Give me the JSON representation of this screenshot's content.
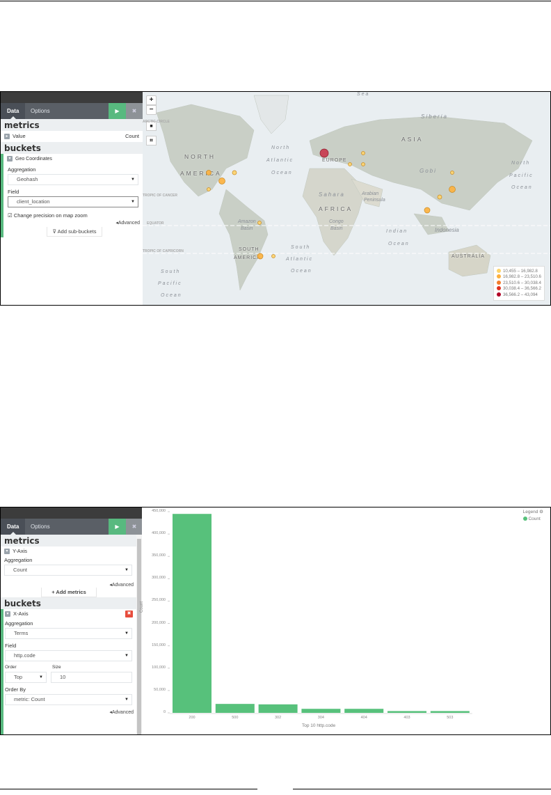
{
  "figure1": {
    "tabs": {
      "data": "Data",
      "options": "Options"
    },
    "play_icon": "play-icon",
    "close_icon": "close-icon",
    "metrics": {
      "title": "metrics",
      "item_label": "Value",
      "item_value": "Count"
    },
    "buckets": {
      "title": "buckets",
      "group_label": "Geo Coordinates",
      "aggregation_label": "Aggregation",
      "aggregation_value": "Geohash",
      "field_label": "Field",
      "field_value": "client_location",
      "checkbox_label": "Change precision on map zoom",
      "checkbox_checked": true,
      "advanced": "Advanced",
      "add_sub_buckets": "Add sub-buckets"
    },
    "map": {
      "controls": {
        "zoom_in": "+",
        "zoom_out": "−"
      },
      "labels": {
        "sea": "Sea",
        "siberia": "Siberia",
        "asia": "ASIA",
        "north": "NORTH",
        "america": "AMERICA",
        "na_ocean": [
          "North",
          "Atlantic",
          "Ocean"
        ],
        "europe": "EUROPE",
        "sahara": "Sahara",
        "africa": "AFRICA",
        "gobi": "Gobi",
        "arabian": [
          "Arabian",
          "Peninsula"
        ],
        "indonesia": "Indonesia",
        "indian": [
          "Indian",
          "Ocean"
        ],
        "australia": "AUSTRALIA",
        "np_ocean": [
          "North",
          "Pacific",
          "Ocean"
        ],
        "sa_ocean": [
          "South",
          "Atlantic",
          "Ocean"
        ],
        "sp_ocean": [
          "South",
          "Pacific",
          "Ocean"
        ],
        "south": "SOUTH",
        "s_america": "AMERICA",
        "amazon": [
          "Amazon",
          "Basin"
        ],
        "congo": [
          "Congo",
          "Basin"
        ],
        "arctic": "ARCTIC CIRCLE",
        "cancer": "TROPIC OF CANCER",
        "equator": "EQUATOR",
        "capricorn": "TROPIC OF CAPRICORN"
      },
      "legend": [
        {
          "range": "10,455 – 16,982.8",
          "color": "#fdd36a"
        },
        {
          "range": "16,982.8 – 23,510.6",
          "color": "#fdb03d"
        },
        {
          "range": "23,510.6 – 30,038.4",
          "color": "#f47d2b"
        },
        {
          "range": "30,038.4 – 36,566.2",
          "color": "#e0301e"
        },
        {
          "range": "36,566.2 – 43,094",
          "color": "#b10026"
        }
      ]
    }
  },
  "figure2": {
    "tabs": {
      "data": "Data",
      "options": "Options"
    },
    "metrics": {
      "title": "metrics",
      "y_axis": "Y-Axis",
      "aggregation_label": "Aggregation",
      "aggregation_value": "Count",
      "advanced": "Advanced",
      "add_metrics": "+ Add metrics"
    },
    "buckets": {
      "title": "buckets",
      "x_axis": "X-Axis",
      "aggregation_label": "Aggregation",
      "aggregation_value": "Terms",
      "field_label": "Field",
      "field_value": "http.code",
      "order_label": "Order",
      "order_value": "Top",
      "size_label": "Size",
      "size_value": "10",
      "order_by_label": "Order By",
      "order_by_value": "metric: Count",
      "advanced": "Advanced"
    },
    "legend": {
      "title": "Legend",
      "item": "Count"
    }
  },
  "chart_data": {
    "type": "bar",
    "categories": [
      "200",
      "500",
      "302",
      "304",
      "404",
      "403",
      "503"
    ],
    "series": [
      {
        "name": "Count",
        "values": [
          445000,
          20000,
          19000,
          9000,
          9000,
          4000,
          4000
        ],
        "color": "#57c17b"
      }
    ],
    "xlabel": "Top 10 http.code",
    "ylabel": "Count",
    "ylim": [
      0,
      450000
    ],
    "yticks": [
      "0",
      "50,000",
      "100,000",
      "150,000",
      "200,000",
      "250,000",
      "300,000",
      "350,000",
      "400,000",
      "450,000"
    ],
    "legend_position": "top-right",
    "grid": false
  }
}
